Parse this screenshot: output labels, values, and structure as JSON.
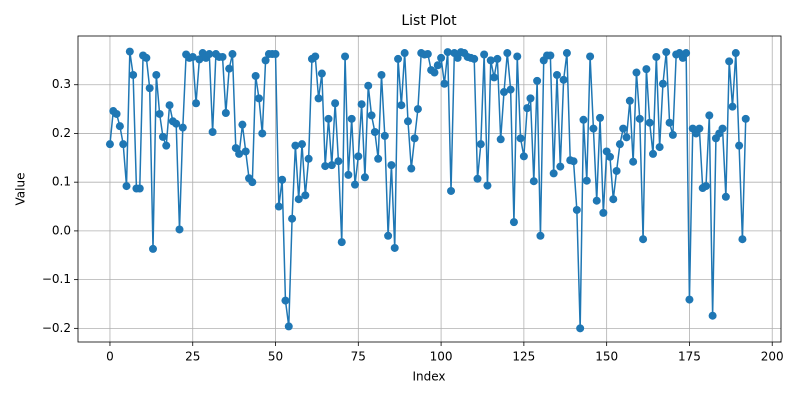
{
  "chart_data": {
    "type": "line",
    "title": "List Plot",
    "x_label": "Index",
    "y_label": "Value",
    "color": "#1f77b4",
    "markers": true,
    "grid": true,
    "xlim": [
      -9.65,
      202.65
    ],
    "xticks": [
      0,
      25,
      50,
      75,
      100,
      125,
      150,
      175,
      200
    ],
    "ylim": [
      -0.228,
      0.4
    ],
    "yticks": [
      {
        "value": -0.2,
        "label": "−0.2"
      },
      {
        "value": -0.1,
        "label": "−0.1"
      },
      {
        "value": 0,
        "label": "0.0"
      },
      0.1,
      0.2,
      0.3
    ],
    "values": [
      0.178,
      0.246,
      0.24,
      0.215,
      0.178,
      0.092,
      0.368,
      0.32,
      0.087,
      0.087,
      0.36,
      0.355,
      0.293,
      -0.037,
      0.32,
      0.24,
      0.193,
      0.175,
      0.258,
      0.225,
      0.22,
      0.003,
      0.212,
      0.362,
      0.355,
      0.357,
      0.262,
      0.352,
      0.365,
      0.355,
      0.363,
      0.203,
      0.363,
      0.357,
      0.357,
      0.242,
      0.333,
      0.363,
      0.17,
      0.158,
      0.218,
      0.163,
      0.108,
      0.1,
      0.318,
      0.272,
      0.2,
      0.35,
      0.363,
      0.363,
      0.363,
      0.05,
      0.105,
      -0.143,
      -0.196,
      0.025,
      0.175,
      0.065,
      0.178,
      0.073,
      0.148,
      0.353,
      0.358,
      0.272,
      0.323,
      0.133,
      0.23,
      0.135,
      0.262,
      0.143,
      -0.023,
      0.358,
      0.115,
      0.23,
      0.095,
      0.153,
      0.26,
      0.11,
      0.298,
      0.237,
      0.203,
      0.148,
      0.32,
      0.195,
      -0.01,
      0.135,
      -0.035,
      0.353,
      0.258,
      0.365,
      0.225,
      0.128,
      0.19,
      0.25,
      0.365,
      0.362,
      0.363,
      0.33,
      0.325,
      0.34,
      0.355,
      0.302,
      0.367,
      0.082,
      0.365,
      0.355,
      0.367,
      0.365,
      0.357,
      0.355,
      0.353,
      0.107,
      0.178,
      0.362,
      0.093,
      0.35,
      0.315,
      0.353,
      0.188,
      0.285,
      0.365,
      0.29,
      0.018,
      0.358,
      0.19,
      0.153,
      0.252,
      0.272,
      0.102,
      0.308,
      -0.01,
      0.35,
      0.36,
      0.36,
      0.118,
      0.32,
      0.132,
      0.31,
      0.365,
      0.145,
      0.143,
      0.043,
      -0.2,
      0.228,
      0.103,
      0.358,
      0.21,
      0.062,
      0.232,
      0.037,
      0.163,
      0.152,
      0.065,
      0.123,
      0.178,
      0.21,
      0.192,
      0.267,
      0.142,
      0.325,
      0.23,
      -0.017,
      0.332,
      0.222,
      0.158,
      0.357,
      0.172,
      0.302,
      0.367,
      0.222,
      0.197,
      0.362,
      0.365,
      0.355,
      0.365,
      -0.141,
      0.21,
      0.2,
      0.21,
      0.088,
      0.092,
      0.237,
      -0.174,
      0.19,
      0.2,
      0.21,
      0.07,
      0.348,
      0.255,
      0.365,
      0.175,
      -0.017,
      0.23
    ]
  }
}
